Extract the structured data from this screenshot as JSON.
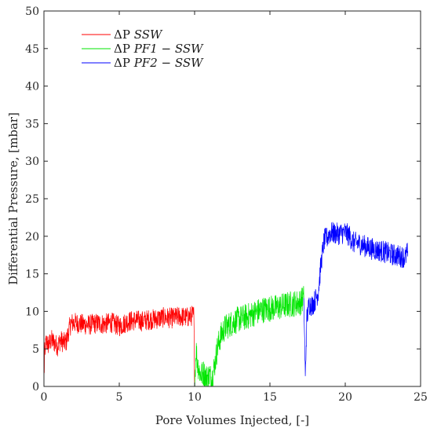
{
  "chart_data": {
    "type": "line",
    "title": "",
    "xlabel": "Pore Volumes Injected, [-]",
    "ylabel": "Differential Pressure, [mbar]",
    "xlim": [
      0,
      25
    ],
    "ylim": [
      0,
      50
    ],
    "xticks": [
      0,
      5,
      10,
      15,
      20,
      25
    ],
    "yticks": [
      0,
      5,
      10,
      15,
      20,
      25,
      30,
      35,
      40,
      45,
      50
    ],
    "grid": false,
    "legend_position": "top-left",
    "series": [
      {
        "name_prefix": "ΔP ",
        "name_italic": "SSW",
        "color": "#ff0000",
        "points": [
          [
            0.0,
            0.3
          ],
          [
            0.05,
            4.5
          ],
          [
            0.15,
            6.0
          ],
          [
            0.3,
            5.5
          ],
          [
            0.5,
            6.2
          ],
          [
            0.7,
            5.8
          ],
          [
            0.9,
            5.4
          ],
          [
            1.1,
            6.2
          ],
          [
            1.3,
            5.8
          ],
          [
            1.5,
            6.0
          ],
          [
            1.65,
            7.5
          ],
          [
            1.8,
            8.4
          ],
          [
            2.0,
            8.5
          ],
          [
            2.5,
            8.3
          ],
          [
            3.0,
            8.2
          ],
          [
            3.5,
            8.4
          ],
          [
            4.0,
            8.3
          ],
          [
            4.5,
            8.5
          ],
          [
            5.0,
            8.0
          ],
          [
            5.5,
            8.6
          ],
          [
            6.0,
            8.8
          ],
          [
            6.5,
            8.7
          ],
          [
            7.0,
            8.9
          ],
          [
            7.5,
            9.0
          ],
          [
            8.0,
            9.2
          ],
          [
            8.5,
            9.1
          ],
          [
            9.0,
            9.3
          ],
          [
            9.5,
            9.2
          ],
          [
            9.95,
            9.5
          ],
          [
            10.0,
            0.2
          ]
        ],
        "noise": 1.4
      },
      {
        "name_prefix": "ΔP ",
        "name_italic": "PF1 − SSW",
        "color": "#00e600",
        "points": [
          [
            10.0,
            0.2
          ],
          [
            10.1,
            5.0
          ],
          [
            10.2,
            3.0
          ],
          [
            10.4,
            1.5
          ],
          [
            10.6,
            1.8
          ],
          [
            10.8,
            1.2
          ],
          [
            11.0,
            1.5
          ],
          [
            11.15,
            1.0
          ],
          [
            11.3,
            2.5
          ],
          [
            11.5,
            5.0
          ],
          [
            11.7,
            6.5
          ],
          [
            12.0,
            7.8
          ],
          [
            12.5,
            8.5
          ],
          [
            13.0,
            9.0
          ],
          [
            13.5,
            9.3
          ],
          [
            14.0,
            9.8
          ],
          [
            14.5,
            10.2
          ],
          [
            15.0,
            10.4
          ],
          [
            15.5,
            10.5
          ],
          [
            16.0,
            10.8
          ],
          [
            16.5,
            11.0
          ],
          [
            17.0,
            11.2
          ],
          [
            17.25,
            11.8
          ]
        ],
        "noise": 1.8
      },
      {
        "name_prefix": "ΔP ",
        "name_italic": "PF2 − SSW",
        "color": "#0000ff",
        "points": [
          [
            17.25,
            11.8
          ],
          [
            17.35,
            1.0
          ],
          [
            17.45,
            9.0
          ],
          [
            17.6,
            11.0
          ],
          [
            17.8,
            10.8
          ],
          [
            18.0,
            11.5
          ],
          [
            18.2,
            12.5
          ],
          [
            18.4,
            16.5
          ],
          [
            18.6,
            19.5
          ],
          [
            18.8,
            19.8
          ],
          [
            19.0,
            20.5
          ],
          [
            19.5,
            20.3
          ],
          [
            20.0,
            20.5
          ],
          [
            20.3,
            20.0
          ],
          [
            20.5,
            19.2
          ],
          [
            21.0,
            19.0
          ],
          [
            21.5,
            18.5
          ],
          [
            22.0,
            18.2
          ],
          [
            22.5,
            18.0
          ],
          [
            23.0,
            17.6
          ],
          [
            23.5,
            17.4
          ],
          [
            24.0,
            17.2
          ],
          [
            24.15,
            18.0
          ]
        ],
        "noise": 1.5
      }
    ]
  }
}
